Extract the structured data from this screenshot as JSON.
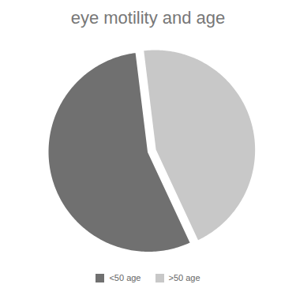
{
  "chart_data": {
    "type": "pie",
    "title": "eye motility and age",
    "categories": [
      "<50 age",
      ">50 age"
    ],
    "values": [
      55,
      45
    ],
    "colors": [
      "#707070",
      "#c8c8c8"
    ],
    "legend": "bottom"
  }
}
